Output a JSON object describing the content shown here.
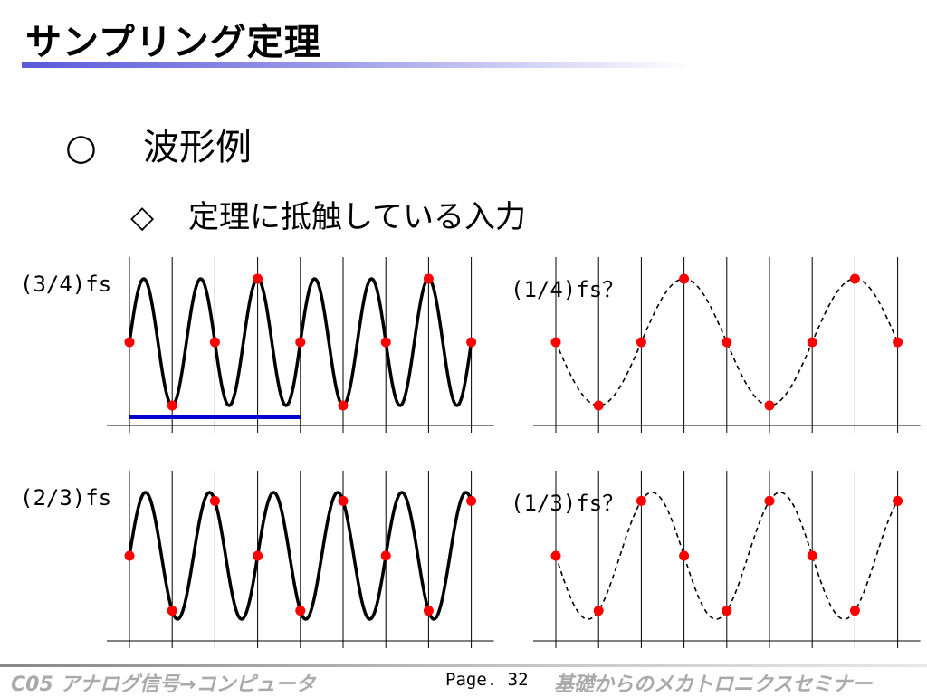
{
  "slide": {
    "title": "サンプリング定理",
    "heading_mark": "○",
    "heading": "波形例",
    "subheading_mark": "◇",
    "subheading": "定理に抵触している入力"
  },
  "panels": [
    {
      "id": "p34",
      "label": "(3/4)fs",
      "cycles_per_sample": 0.75,
      "curve": "solid",
      "start": "up",
      "blue_bar_samples": [
        0,
        4
      ]
    },
    {
      "id": "p14",
      "label": "(1/4)fs？",
      "cycles_per_sample": 0.25,
      "curve": "dashed",
      "start": "down"
    },
    {
      "id": "p23",
      "label": "(2/3)fs",
      "cycles_per_sample": 0.6667,
      "curve": "solid",
      "start": "up"
    },
    {
      "id": "p13",
      "label": "(1/3)fs？",
      "cycles_per_sample": 0.3333,
      "curve": "dashed",
      "start": "down"
    }
  ],
  "colors": {
    "curve": "#000000",
    "sample": "#ff0000",
    "bar": "#0000cc",
    "grid": "#000000"
  },
  "footer": {
    "left": "C05 アナログ信号→コンピュータ",
    "page": "Page. 32",
    "right": "基礎からのメカトロニクスセミナー"
  }
}
